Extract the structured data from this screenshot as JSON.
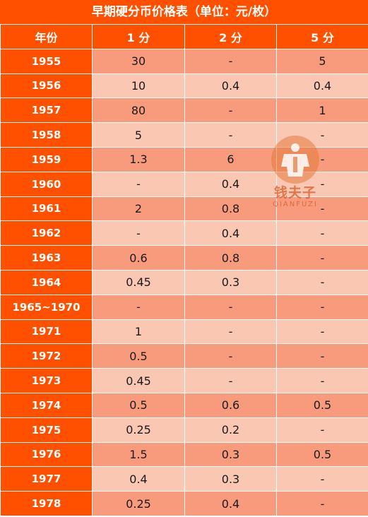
{
  "title": "早期硬分币价格表（单位：元/枚）",
  "headers": [
    "年份",
    "1 分",
    "2 分",
    "5 分"
  ],
  "rows": [
    [
      "1955",
      "30",
      "-",
      "5"
    ],
    [
      "1956",
      "10",
      "0.4",
      "0.4"
    ],
    [
      "1957",
      "80",
      "-",
      "1"
    ],
    [
      "1958",
      "5",
      "-",
      "-"
    ],
    [
      "1959",
      "1.3",
      "6",
      "-"
    ],
    [
      "1960",
      "-",
      "0.4",
      "-"
    ],
    [
      "1961",
      "2",
      "0.8",
      "-"
    ],
    [
      "1962",
      "-",
      "0.4",
      "-"
    ],
    [
      "1963",
      "0.6",
      "0.8",
      "-"
    ],
    [
      "1964",
      "0.45",
      "0.3",
      "-"
    ],
    [
      "1965~1970",
      "-",
      "-",
      "-"
    ],
    [
      "1971",
      "1",
      "-",
      "-"
    ],
    [
      "1972",
      "0.5",
      "-",
      "-"
    ],
    [
      "1973",
      "0.45",
      "-",
      "-"
    ],
    [
      "1974",
      "0.5",
      "0.6",
      "0.5"
    ],
    [
      "1975",
      "0.25",
      "0.2",
      "-"
    ],
    [
      "1976",
      "1.5",
      "0.3",
      "0.5"
    ],
    [
      "1977",
      "0.4",
      "0.3",
      "-"
    ],
    [
      "1978",
      "0.25",
      "0.4",
      "-"
    ]
  ],
  "watermark": {
    "text": "钱夫子",
    "subtext": "QIANFUZI"
  },
  "colors": {
    "header_bg": "#FF5000",
    "row_odd_bg": "#F89B7C",
    "row_even_bg": "#FAC7B2"
  }
}
